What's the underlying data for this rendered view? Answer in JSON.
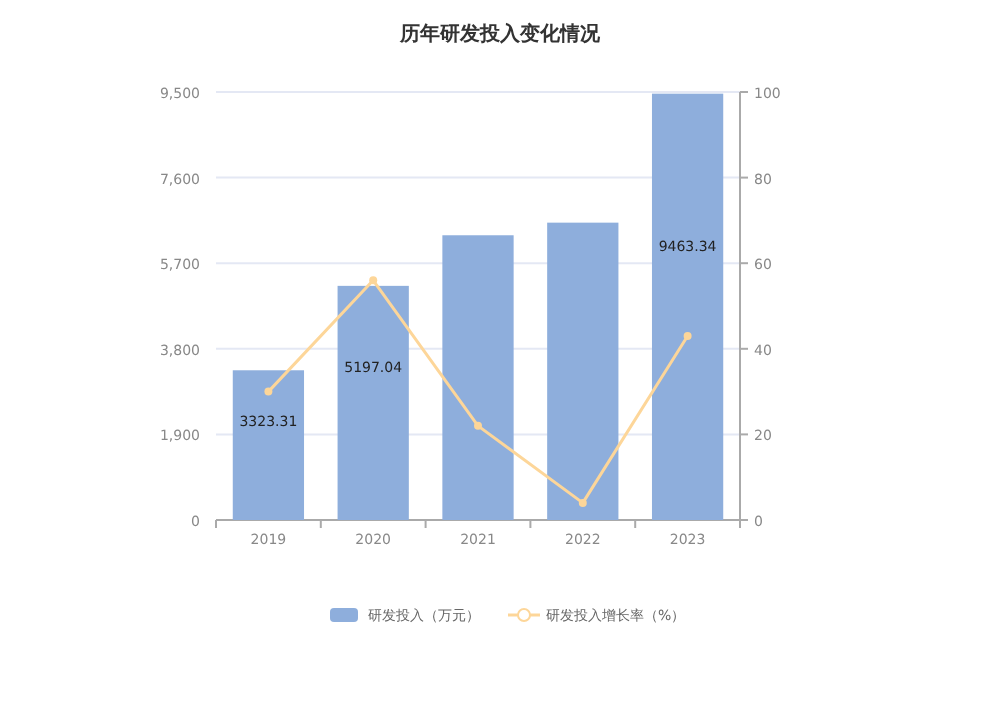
{
  "chart_data": {
    "type": "bar",
    "title": "历年研发投入变化情况",
    "categories": [
      "2019",
      "2020",
      "2021",
      "2022",
      "2023"
    ],
    "series": [
      {
        "name": "研发投入（万元）",
        "color": "#8eaedc",
        "values": [
          3323.31,
          5197.04,
          6320,
          6600,
          9463.34
        ],
        "value_labels": [
          "3323.31",
          "5197.04",
          null,
          null,
          "9463.34"
        ]
      },
      {
        "name": "研发投入增长率（%）",
        "type": "line",
        "axis": "y2",
        "color": "#fdd699",
        "values": [
          30,
          56,
          22,
          4,
          43
        ]
      }
    ],
    "ylim": [
      0,
      9500
    ],
    "yticks": [
      0,
      {
        "value": 1900,
        "label": "1,900"
      },
      {
        "value": 3800,
        "label": "3,800"
      },
      {
        "value": 5700,
        "label": "5,700"
      },
      {
        "value": 7600,
        "label": "7,600"
      },
      {
        "value": 9500,
        "label": "9,500"
      }
    ],
    "y2lim": [
      0,
      100
    ],
    "y2ticks": [
      0,
      20,
      40,
      60,
      80,
      100
    ],
    "grid": "y",
    "legend": "bottom",
    "marker": "circle"
  }
}
